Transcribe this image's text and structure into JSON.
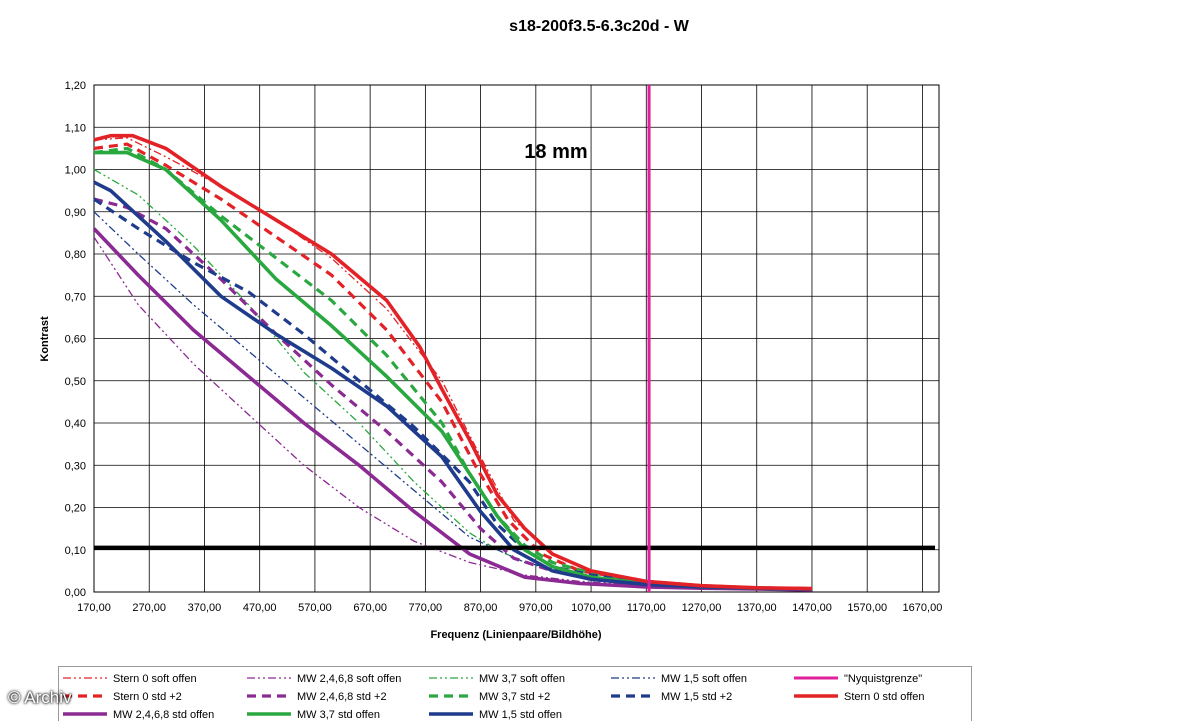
{
  "watermark": "© Archiv",
  "colors": {
    "stern": "#e32227",
    "mw2468": "#8b2a93",
    "mw37": "#2aa840",
    "mw15": "#1f3b8c",
    "nyquist": "#e0209b",
    "threshold": "#000000",
    "grid": "#000000"
  },
  "chart_data": {
    "type": "line",
    "title": "s18-200f3.5-6.3c20d - W",
    "annotation": "18 mm",
    "xlabel": "Frequenz (Linienpaare/Bildhöhe)",
    "ylabel": "Kontrast",
    "xlim": [
      170,
      1700
    ],
    "ylim": [
      0,
      1.2
    ],
    "x_ticks": [
      "170,00",
      "270,00",
      "370,00",
      "470,00",
      "570,00",
      "670,00",
      "770,00",
      "870,00",
      "970,00",
      "1070,00",
      "1170,00",
      "1270,00",
      "1370,00",
      "1470,00",
      "1570,00",
      "1670,00"
    ],
    "y_ticks": [
      "0,00",
      "0,10",
      "0,20",
      "0,30",
      "0,40",
      "0,50",
      "0,60",
      "0,70",
      "0,80",
      "0,90",
      "1,00",
      "1,10",
      "1,20"
    ],
    "grid": true,
    "legend_position": "bottom",
    "threshold_y": 0.105,
    "nyquist_x": 1175,
    "series": [
      {
        "name": "Stern 0 soft offen",
        "color": "#e32227",
        "style": "dashdotdot",
        "width": 1.3,
        "x": [
          170,
          230,
          300,
          400,
          500,
          600,
          700,
          800,
          870,
          930,
          1000,
          1070,
          1170,
          1270,
          1370,
          1470
        ],
        "y": [
          1.07,
          1.075,
          1.03,
          0.96,
          0.88,
          0.79,
          0.67,
          0.5,
          0.32,
          0.17,
          0.09,
          0.05,
          0.025,
          0.015,
          0.01,
          0.008
        ]
      },
      {
        "name": "MW 2,4,6,8 soft offen",
        "color": "#8b2a93",
        "style": "dashdotdot",
        "width": 1.3,
        "x": [
          170,
          250,
          350,
          450,
          550,
          650,
          750,
          850,
          950,
          1050,
          1170,
          1270,
          1370,
          1470
        ],
        "y": [
          0.84,
          0.68,
          0.54,
          0.42,
          0.3,
          0.2,
          0.12,
          0.07,
          0.04,
          0.025,
          0.015,
          0.01,
          0.008,
          0.006
        ]
      },
      {
        "name": "MW 3,7 soft offen",
        "color": "#2aa840",
        "style": "dashdotdot",
        "width": 1.3,
        "x": [
          170,
          250,
          350,
          450,
          550,
          650,
          750,
          850,
          900,
          950,
          1050,
          1170,
          1270,
          1370,
          1470
        ],
        "y": [
          1.0,
          0.94,
          0.82,
          0.68,
          0.52,
          0.4,
          0.26,
          0.14,
          0.1,
          0.07,
          0.035,
          0.02,
          0.012,
          0.009,
          0.007
        ]
      },
      {
        "name": "MW 1,5 soft offen",
        "color": "#1f3b8c",
        "style": "dashdotdot",
        "width": 1.3,
        "x": [
          170,
          250,
          350,
          450,
          550,
          650,
          750,
          850,
          950,
          1050,
          1170,
          1270,
          1370,
          1470
        ],
        "y": [
          0.9,
          0.8,
          0.68,
          0.57,
          0.46,
          0.35,
          0.24,
          0.13,
          0.07,
          0.04,
          0.02,
          0.012,
          0.009,
          0.007
        ]
      },
      {
        "name": "\"Nyquistgrenze\"",
        "color": "#e0209b",
        "style": "solid",
        "width": 3
      },
      {
        "name": "Stern 0 std +2",
        "color": "#e32227",
        "style": "dash",
        "width": 3.2,
        "x": [
          170,
          230,
          300,
          400,
          500,
          600,
          700,
          800,
          860,
          920,
          980,
          1050,
          1170,
          1270,
          1370,
          1470
        ],
        "y": [
          1.05,
          1.06,
          1.01,
          0.93,
          0.84,
          0.75,
          0.62,
          0.45,
          0.3,
          0.17,
          0.09,
          0.05,
          0.025,
          0.015,
          0.01,
          0.008
        ]
      },
      {
        "name": "MW 2,4,6,8 std +2",
        "color": "#8b2a93",
        "style": "dash",
        "width": 3.2,
        "x": [
          170,
          230,
          300,
          400,
          500,
          600,
          700,
          800,
          870,
          930,
          1000,
          1070,
          1170,
          1270,
          1370,
          1470
        ],
        "y": [
          0.93,
          0.91,
          0.86,
          0.74,
          0.61,
          0.49,
          0.38,
          0.26,
          0.15,
          0.08,
          0.05,
          0.03,
          0.018,
          0.012,
          0.009,
          0.007
        ]
      },
      {
        "name": "MW 3,7 std +2",
        "color": "#2aa840",
        "style": "dash",
        "width": 3.2,
        "x": [
          170,
          230,
          300,
          400,
          500,
          600,
          700,
          800,
          850,
          900,
          950,
          1000,
          1070,
          1170,
          1270,
          1370,
          1470
        ],
        "y": [
          1.04,
          1.05,
          1.0,
          0.89,
          0.79,
          0.69,
          0.56,
          0.4,
          0.28,
          0.18,
          0.11,
          0.07,
          0.045,
          0.025,
          0.015,
          0.01,
          0.008
        ]
      },
      {
        "name": "MW 1,5 std +2",
        "color": "#1f3b8c",
        "style": "dash",
        "width": 3.2,
        "x": [
          170,
          250,
          350,
          450,
          550,
          650,
          750,
          850,
          900,
          950,
          1000,
          1070,
          1170,
          1270,
          1370,
          1470
        ],
        "y": [
          0.93,
          0.86,
          0.78,
          0.71,
          0.61,
          0.5,
          0.39,
          0.26,
          0.16,
          0.1,
          0.06,
          0.04,
          0.022,
          0.013,
          0.01,
          0.008
        ]
      },
      {
        "name": "Stern 0 std offen",
        "color": "#e32227",
        "style": "solid",
        "width": 3.6,
        "x": [
          170,
          200,
          240,
          300,
          400,
          500,
          600,
          700,
          760,
          800,
          850,
          900,
          950,
          1000,
          1070,
          1170,
          1270,
          1370,
          1470
        ],
        "y": [
          1.07,
          1.08,
          1.08,
          1.05,
          0.96,
          0.88,
          0.8,
          0.69,
          0.58,
          0.48,
          0.36,
          0.23,
          0.15,
          0.09,
          0.05,
          0.025,
          0.015,
          0.01,
          0.008
        ]
      },
      {
        "name": "MW 2,4,6,8 std offen",
        "color": "#8b2a93",
        "style": "solid",
        "width": 3.6,
        "x": [
          170,
          250,
          350,
          450,
          550,
          650,
          750,
          850,
          950,
          1050,
          1170,
          1270,
          1370,
          1470
        ],
        "y": [
          0.86,
          0.75,
          0.62,
          0.51,
          0.4,
          0.3,
          0.19,
          0.09,
          0.035,
          0.02,
          0.012,
          0.009,
          0.007,
          0.005
        ]
      },
      {
        "name": "MW 3,7 std offen",
        "color": "#2aa840",
        "style": "solid",
        "width": 3.6,
        "x": [
          170,
          230,
          300,
          400,
          500,
          600,
          700,
          800,
          850,
          900,
          950,
          1000,
          1070,
          1170,
          1270,
          1370,
          1470
        ],
        "y": [
          1.04,
          1.04,
          1.0,
          0.88,
          0.74,
          0.63,
          0.51,
          0.38,
          0.28,
          0.18,
          0.1,
          0.06,
          0.035,
          0.02,
          0.012,
          0.009,
          0.007
        ]
      },
      {
        "name": "MW 1,5 std offen",
        "color": "#1f3b8c",
        "style": "solid",
        "width": 3.6,
        "x": [
          170,
          200,
          300,
          400,
          500,
          600,
          700,
          800,
          870,
          930,
          1000,
          1070,
          1170,
          1270,
          1370,
          1470
        ],
        "y": [
          0.97,
          0.95,
          0.83,
          0.7,
          0.61,
          0.53,
          0.44,
          0.32,
          0.19,
          0.1,
          0.05,
          0.03,
          0.018,
          0.012,
          0.009,
          0.007
        ]
      }
    ]
  }
}
